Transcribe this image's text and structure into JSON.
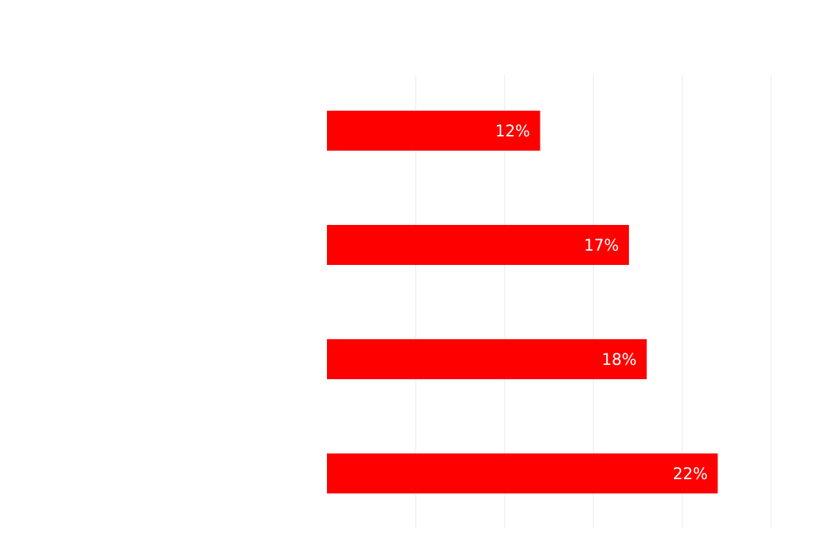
{
  "chart_data": {
    "type": "bar",
    "orientation": "horizontal",
    "categories": [
      "",
      "",
      "",
      ""
    ],
    "values": [
      12,
      17,
      18,
      22
    ],
    "data_labels": [
      "12%",
      "17%",
      "18%",
      "22%"
    ],
    "unit": "%",
    "xlim": [
      0,
      25
    ],
    "grid": true,
    "legend": "none",
    "title": "",
    "xlabel": "",
    "ylabel": "",
    "colors": {
      "bar": "#ff0000",
      "label": "#ffffff",
      "background": "#ffffff"
    }
  }
}
